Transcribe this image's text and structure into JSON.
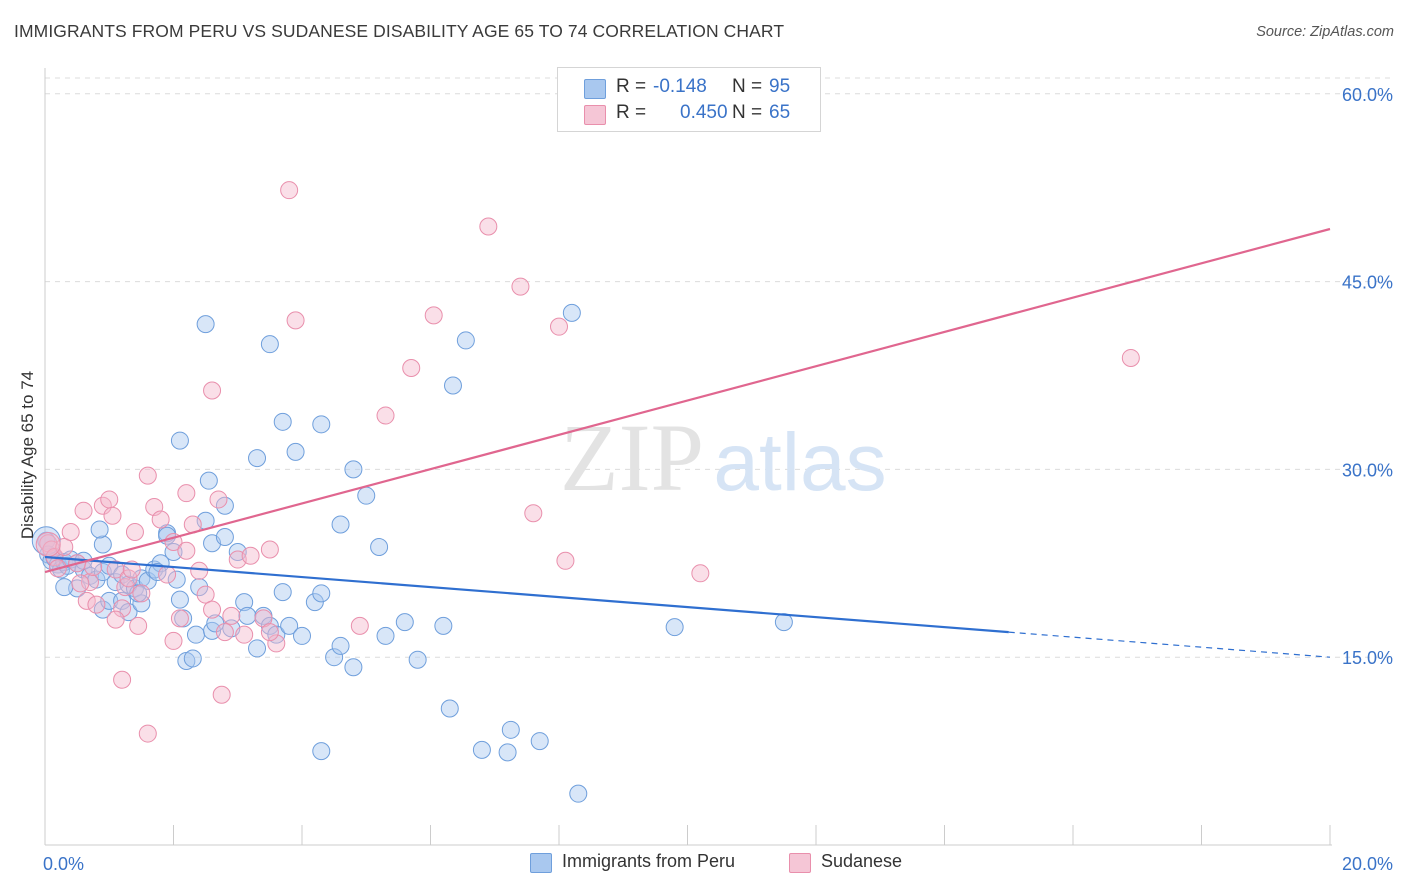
{
  "title": "IMMIGRANTS FROM PERU VS SUDANESE DISABILITY AGE 65 TO 74 CORRELATION CHART",
  "source": "Source: ZipAtlas.com",
  "watermark": {
    "zip": "ZIP",
    "atlas": "atlas"
  },
  "legend": {
    "rows": [
      {
        "r_label": "R =",
        "r_value": "-0.148",
        "n_label": "N =",
        "n_value": "95"
      },
      {
        "r_label": "R =",
        "r_value": "0.450",
        "n_label": "N =",
        "n_value": "65"
      }
    ]
  },
  "bottom_legend": [
    "Immigrants from Peru",
    "Sudanese"
  ],
  "colors": {
    "peru_fill": "#a9c8ef",
    "peru_stroke": "#6f9fdc",
    "peru_line": "#2f6fd0",
    "sud_fill": "#f5b8cb",
    "sud_stroke": "#e98fac",
    "sud_line": "#e0668f",
    "tick_label": "#3a73c8",
    "grid": "#dcdcdc"
  },
  "chart_data": {
    "type": "scatter",
    "title": "IMMIGRANTS FROM PERU VS SUDANESE DISABILITY AGE 65 TO 74 CORRELATION CHART",
    "xlabel": "",
    "ylabel": "Disability Age 65 to 74",
    "xlim": [
      0,
      20
    ],
    "ylim": [
      0,
      61.5
    ],
    "x_tick_labels": [
      "0.0%",
      "20.0%"
    ],
    "y_ticks": [
      15,
      30,
      45,
      60
    ],
    "y_tick_labels": [
      "15.0%",
      "30.0%",
      "45.0%",
      "60.0%"
    ],
    "grid": true,
    "series": [
      {
        "name": "Immigrants from Peru",
        "R": -0.148,
        "N": 95,
        "trend": {
          "x0": 0,
          "y0": 23.0,
          "x1": 15.0,
          "y1": 17.0,
          "dashed_to_x": 20.0,
          "dashed_to_y": 15.0
        },
        "points": [
          [
            0.02,
            24.3
          ],
          [
            0.05,
            23.2
          ],
          [
            0.1,
            22.7
          ],
          [
            0.15,
            22.9
          ],
          [
            0.2,
            22.4
          ],
          [
            0.25,
            22.0
          ],
          [
            0.3,
            22.6
          ],
          [
            0.35,
            22.3
          ],
          [
            0.4,
            22.8
          ],
          [
            0.5,
            22.5
          ],
          [
            0.6,
            22.0
          ],
          [
            0.7,
            21.5
          ],
          [
            0.8,
            21.2
          ],
          [
            0.9,
            21.8
          ],
          [
            1.0,
            22.3
          ],
          [
            1.1,
            21.0
          ],
          [
            1.2,
            21.6
          ],
          [
            1.3,
            20.8
          ],
          [
            1.4,
            20.5
          ],
          [
            1.5,
            21.3
          ],
          [
            1.6,
            21.1
          ],
          [
            0.9,
            24.0
          ],
          [
            0.85,
            25.2
          ],
          [
            0.5,
            20.5
          ],
          [
            0.9,
            18.8
          ],
          [
            1.0,
            19.5
          ],
          [
            1.2,
            19.5
          ],
          [
            1.3,
            18.6
          ],
          [
            1.5,
            19.3
          ],
          [
            1.7,
            22.0
          ],
          [
            1.8,
            22.5
          ],
          [
            1.9,
            24.9
          ],
          [
            2.0,
            23.4
          ],
          [
            2.05,
            21.2
          ],
          [
            2.1,
            19.6
          ],
          [
            2.15,
            18.1
          ],
          [
            2.2,
            14.7
          ],
          [
            2.3,
            14.9
          ],
          [
            2.35,
            16.8
          ],
          [
            2.4,
            20.6
          ],
          [
            2.5,
            25.9
          ],
          [
            2.55,
            29.1
          ],
          [
            2.6,
            17.1
          ],
          [
            2.6,
            24.1
          ],
          [
            2.8,
            24.6
          ],
          [
            2.8,
            27.1
          ],
          [
            2.9,
            17.3
          ],
          [
            3.0,
            23.4
          ],
          [
            3.1,
            19.4
          ],
          [
            3.15,
            18.3
          ],
          [
            3.3,
            15.7
          ],
          [
            3.4,
            18.3
          ],
          [
            3.5,
            17.5
          ],
          [
            3.6,
            16.8
          ],
          [
            3.7,
            20.2
          ],
          [
            3.8,
            17.5
          ],
          [
            4.0,
            16.7
          ],
          [
            4.2,
            19.4
          ],
          [
            4.3,
            20.1
          ],
          [
            4.5,
            15.0
          ],
          [
            4.6,
            15.9
          ],
          [
            4.8,
            14.2
          ],
          [
            5.0,
            27.9
          ],
          [
            5.2,
            23.8
          ],
          [
            5.3,
            16.7
          ],
          [
            5.6,
            17.8
          ],
          [
            5.8,
            14.8
          ],
          [
            6.2,
            17.5
          ],
          [
            6.3,
            10.9
          ],
          [
            6.35,
            36.7
          ],
          [
            6.55,
            40.3
          ],
          [
            6.8,
            7.6
          ],
          [
            7.2,
            7.4
          ],
          [
            7.25,
            9.2
          ],
          [
            7.7,
            8.3
          ],
          [
            8.2,
            42.5
          ],
          [
            8.3,
            4.1
          ],
          [
            2.5,
            41.6
          ],
          [
            3.7,
            33.8
          ],
          [
            4.3,
            33.6
          ],
          [
            3.5,
            40.0
          ],
          [
            2.1,
            32.3
          ],
          [
            3.3,
            30.9
          ],
          [
            3.9,
            31.4
          ],
          [
            4.6,
            25.6
          ],
          [
            4.8,
            30.0
          ],
          [
            1.9,
            24.7
          ],
          [
            9.8,
            17.4
          ],
          [
            11.5,
            17.8
          ],
          [
            4.3,
            7.5
          ],
          [
            0.3,
            20.6
          ],
          [
            0.6,
            22.7
          ],
          [
            1.45,
            20.1
          ],
          [
            1.75,
            21.8
          ],
          [
            2.65,
            17.7
          ]
        ]
      },
      {
        "name": "Sudanese",
        "R": 0.45,
        "N": 65,
        "trend": {
          "x0": 0,
          "y0": 21.8,
          "x1": 20.0,
          "y1": 49.2
        },
        "points": [
          [
            0.05,
            24.1
          ],
          [
            0.1,
            23.6
          ],
          [
            0.15,
            23.0
          ],
          [
            0.2,
            22.1
          ],
          [
            0.3,
            23.8
          ],
          [
            0.4,
            25.0
          ],
          [
            0.5,
            22.5
          ],
          [
            0.6,
            26.7
          ],
          [
            0.65,
            19.5
          ],
          [
            0.7,
            21.0
          ],
          [
            0.75,
            22.2
          ],
          [
            0.8,
            19.2
          ],
          [
            0.9,
            27.1
          ],
          [
            1.0,
            27.6
          ],
          [
            1.05,
            26.3
          ],
          [
            1.1,
            22.0
          ],
          [
            1.2,
            18.9
          ],
          [
            1.25,
            20.6
          ],
          [
            1.3,
            21.3
          ],
          [
            1.35,
            22.0
          ],
          [
            1.4,
            25.0
          ],
          [
            1.5,
            20.1
          ],
          [
            1.6,
            29.5
          ],
          [
            1.7,
            27.0
          ],
          [
            1.8,
            26.0
          ],
          [
            1.9,
            21.6
          ],
          [
            2.0,
            24.2
          ],
          [
            2.1,
            18.1
          ],
          [
            2.2,
            28.1
          ],
          [
            2.3,
            25.6
          ],
          [
            2.4,
            21.9
          ],
          [
            2.5,
            20.0
          ],
          [
            2.6,
            18.8
          ],
          [
            2.7,
            27.6
          ],
          [
            2.75,
            12.0
          ],
          [
            2.8,
            17.0
          ],
          [
            2.9,
            18.3
          ],
          [
            3.0,
            22.8
          ],
          [
            3.1,
            16.8
          ],
          [
            3.2,
            23.1
          ],
          [
            3.4,
            18.1
          ],
          [
            3.5,
            23.6
          ],
          [
            3.6,
            16.1
          ],
          [
            3.9,
            41.9
          ],
          [
            3.8,
            52.3
          ],
          [
            4.9,
            17.5
          ],
          [
            5.3,
            34.3
          ],
          [
            5.7,
            38.1
          ],
          [
            6.05,
            42.3
          ],
          [
            6.9,
            49.4
          ],
          [
            7.4,
            44.6
          ],
          [
            7.6,
            26.5
          ],
          [
            8.1,
            22.7
          ],
          [
            8.0,
            41.4
          ],
          [
            10.2,
            21.7
          ],
          [
            16.9,
            38.9
          ],
          [
            1.2,
            13.2
          ],
          [
            1.6,
            8.9
          ],
          [
            2.0,
            16.3
          ],
          [
            2.6,
            36.3
          ],
          [
            3.5,
            17.0
          ],
          [
            1.1,
            18.0
          ],
          [
            0.55,
            20.9
          ],
          [
            1.45,
            17.5
          ],
          [
            2.2,
            23.5
          ]
        ]
      }
    ]
  }
}
